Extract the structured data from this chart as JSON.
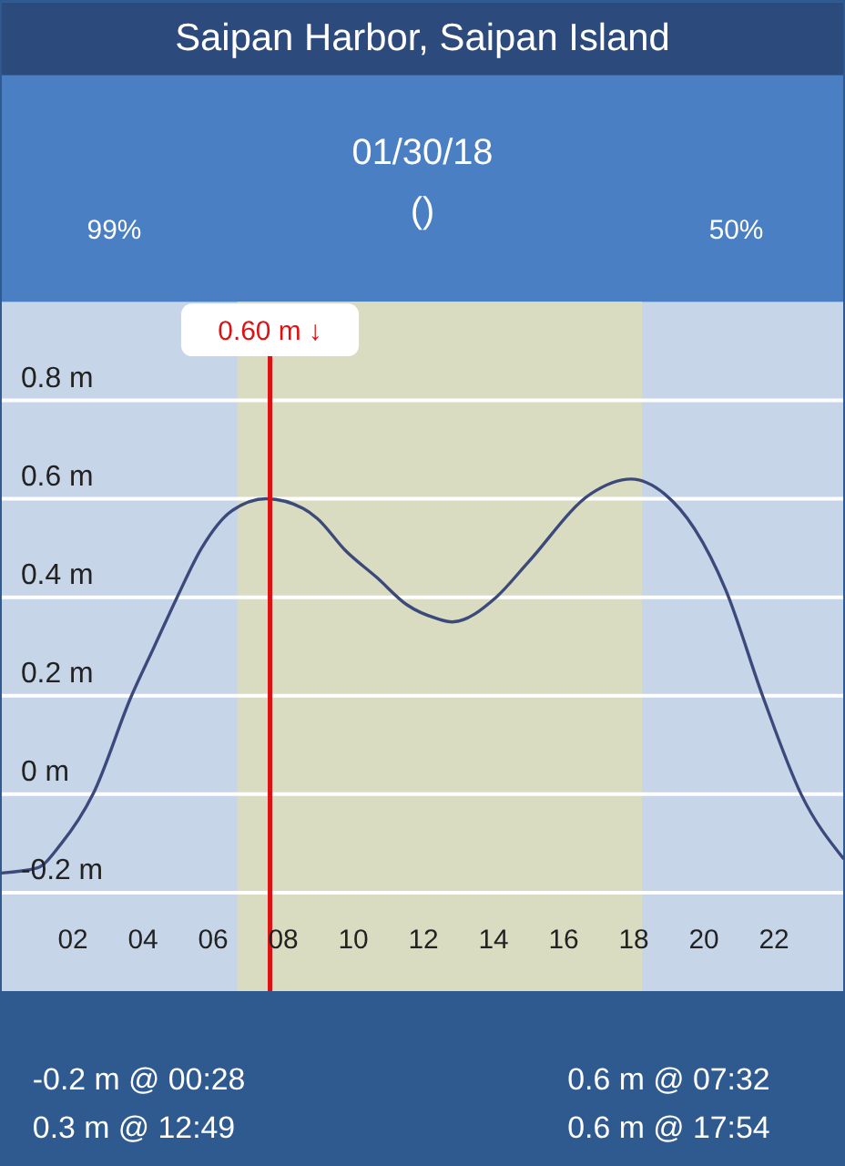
{
  "chart_data": {
    "type": "line",
    "title": "Saipan Harbor, Saipan Island",
    "subtitle": "01/30/18",
    "annotations": [
      "()",
      "99%",
      "50%",
      "-0.2 m @ 00:28",
      "0.6 m @ 07:32",
      "0.3 m @ 12:49",
      "0.6 m @ 17:54"
    ],
    "x": [
      0,
      1.0,
      1.7,
      2.6,
      3.7,
      4.35,
      5.0,
      5.7,
      6.55,
      7.55,
      8.6,
      9.0,
      9.8,
      10.7,
      11.55,
      12.4,
      12.85,
      14.1,
      15.0,
      16.8,
      17.95,
      18.9,
      19.75,
      20.65,
      21.7,
      22.8,
      24
    ],
    "series": [
      {
        "color": "#3b4a7a",
        "values": [
          -0.16,
          -0.15,
          -0.1,
          0.0,
          0.2,
          0.3,
          0.4,
          0.5,
          0.575,
          0.6,
          0.58,
          0.56,
          0.495,
          0.44,
          0.385,
          0.357,
          0.35,
          0.4,
          0.47,
          0.61,
          0.64,
          0.61,
          0.54,
          0.415,
          0.2,
          0.0,
          -0.13
        ]
      }
    ],
    "xlim": [
      0,
      24
    ],
    "xticks": [
      {
        "value": 2,
        "label": "02"
      },
      {
        "value": 4,
        "label": "04"
      },
      {
        "value": 6,
        "label": "06"
      },
      {
        "value": 8,
        "label": "08"
      },
      10,
      12,
      14,
      16,
      18,
      20,
      22
    ],
    "ylim": [
      -0.4,
      1.0
    ],
    "yticks": [
      {
        "value": -0.2,
        "label": "-0.2 m"
      },
      {
        "value": 0,
        "label": "0 m"
      },
      {
        "value": 0.2,
        "label": "0.2 m"
      },
      {
        "value": 0.4,
        "label": "0.4 m"
      },
      {
        "value": 0.6,
        "label": "0.6 m"
      },
      {
        "value": 0.8,
        "label": "0.8 m"
      }
    ],
    "grid": "y",
    "ref_lines": [
      {
        "axis": "x",
        "value": 7.65,
        "label": "0.60 m ↓",
        "color": "#dd1111"
      }
    ],
    "bands": [
      {
        "axis": "x",
        "from": 6.72,
        "to": 18.26,
        "color": "#d9dcc0"
      }
    ],
    "marker": "none",
    "line_style": "solid"
  }
}
